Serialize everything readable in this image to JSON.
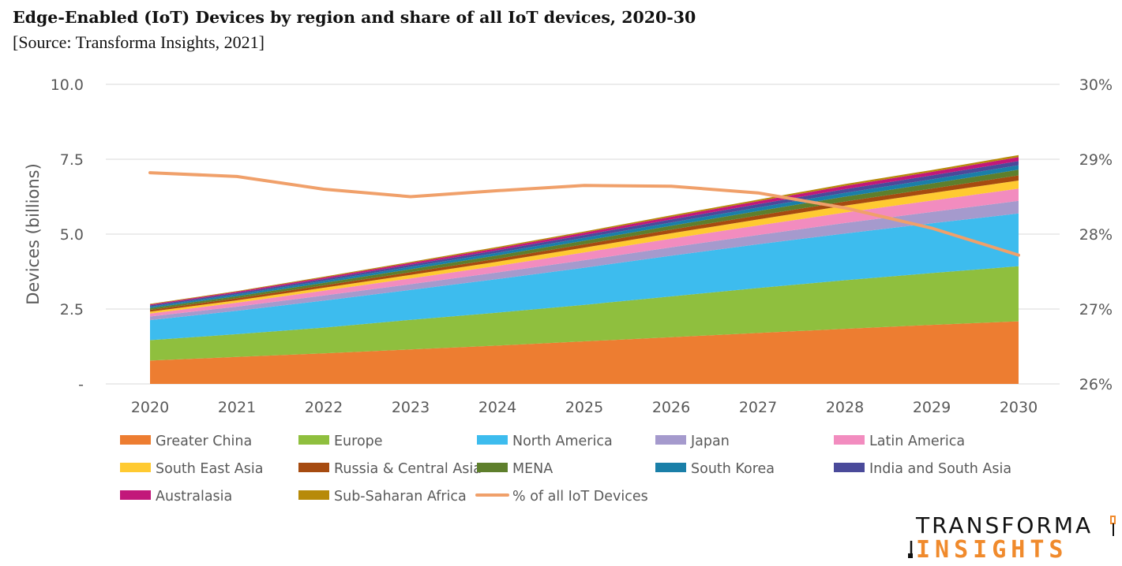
{
  "title": "Edge-Enabled (IoT) Devices by region and share of all IoT devices, 2020-30",
  "subtitle": "[Source: Transforma Insights, 2021]",
  "logo": {
    "line1": "TRANSFORMA",
    "line2": "INSIGHTS"
  },
  "chart_data": {
    "type": "area",
    "stacked": true,
    "x": [
      "2020",
      "2021",
      "2022",
      "2023",
      "2024",
      "2025",
      "2026",
      "2027",
      "2028",
      "2029",
      "2030"
    ],
    "ylabel": "Devices (billions)",
    "ylim": [
      0,
      10
    ],
    "yticks": [
      {
        "value": 0,
        "label": "-"
      },
      {
        "value": 2.5,
        "label": "2.5"
      },
      {
        "value": 5,
        "label": "5.0"
      },
      {
        "value": 7.5,
        "label": "7.5"
      },
      {
        "value": 10,
        "label": "10.0"
      }
    ],
    "y2lim": [
      26,
      30
    ],
    "y2ticks": [
      {
        "value": 26,
        "label": "26%"
      },
      {
        "value": 27,
        "label": "27%"
      },
      {
        "value": 28,
        "label": "28%"
      },
      {
        "value": 29,
        "label": "29%"
      },
      {
        "value": 30,
        "label": "30%"
      }
    ],
    "grid": true,
    "legend_position": "bottom",
    "series": [
      {
        "name": "Greater China",
        "color": "#ED7D31",
        "values": [
          0.78,
          0.9,
          1.02,
          1.15,
          1.28,
          1.42,
          1.56,
          1.7,
          1.84,
          1.97,
          2.09
        ]
      },
      {
        "name": "Europe",
        "color": "#8FBF3E",
        "values": [
          0.68,
          0.76,
          0.86,
          0.99,
          1.1,
          1.22,
          1.36,
          1.5,
          1.62,
          1.73,
          1.84
        ]
      },
      {
        "name": "North America",
        "color": "#3DBCEE",
        "values": [
          0.67,
          0.78,
          0.9,
          1.0,
          1.12,
          1.24,
          1.36,
          1.46,
          1.56,
          1.66,
          1.76
        ]
      },
      {
        "name": "Japan",
        "color": "#A59ACD",
        "values": [
          0.12,
          0.14,
          0.17,
          0.19,
          0.22,
          0.25,
          0.28,
          0.31,
          0.35,
          0.38,
          0.42
        ]
      },
      {
        "name": "Latin America",
        "color": "#F28CBF",
        "values": [
          0.1,
          0.13,
          0.16,
          0.19,
          0.22,
          0.26,
          0.29,
          0.32,
          0.35,
          0.38,
          0.41
        ]
      },
      {
        "name": "South East Asia",
        "color": "#FFCA31",
        "values": [
          0.06,
          0.08,
          0.1,
          0.12,
          0.14,
          0.16,
          0.18,
          0.2,
          0.23,
          0.25,
          0.27
        ]
      },
      {
        "name": "Russia & Central Asia",
        "color": "#A64B10",
        "values": [
          0.06,
          0.07,
          0.08,
          0.09,
          0.1,
          0.11,
          0.12,
          0.13,
          0.14,
          0.15,
          0.17
        ]
      },
      {
        "name": "MENA",
        "color": "#5E7F2C",
        "values": [
          0.06,
          0.07,
          0.08,
          0.1,
          0.11,
          0.12,
          0.13,
          0.15,
          0.16,
          0.17,
          0.19
        ]
      },
      {
        "name": "South Korea",
        "color": "#1A7FA8",
        "values": [
          0.05,
          0.06,
          0.07,
          0.08,
          0.09,
          0.1,
          0.11,
          0.12,
          0.13,
          0.14,
          0.15
        ]
      },
      {
        "name": "India and South Asia",
        "color": "#4A4A9A",
        "values": [
          0.04,
          0.05,
          0.06,
          0.07,
          0.08,
          0.09,
          0.1,
          0.11,
          0.12,
          0.13,
          0.14
        ]
      },
      {
        "name": "Australasia",
        "color": "#C2187A",
        "values": [
          0.03,
          0.04,
          0.05,
          0.06,
          0.07,
          0.08,
          0.09,
          0.1,
          0.11,
          0.12,
          0.13
        ]
      },
      {
        "name": "Sub-Saharan Africa",
        "color": "#B78A09",
        "values": [
          0.02,
          0.02,
          0.03,
          0.03,
          0.04,
          0.04,
          0.05,
          0.05,
          0.06,
          0.06,
          0.07
        ]
      }
    ],
    "line_series": {
      "name": "% of all IoT Devices",
      "color": "#F0A06A",
      "axis": "right",
      "values": [
        28.82,
        28.77,
        28.6,
        28.5,
        28.58,
        28.65,
        28.64,
        28.55,
        28.35,
        28.08,
        27.72
      ]
    }
  }
}
